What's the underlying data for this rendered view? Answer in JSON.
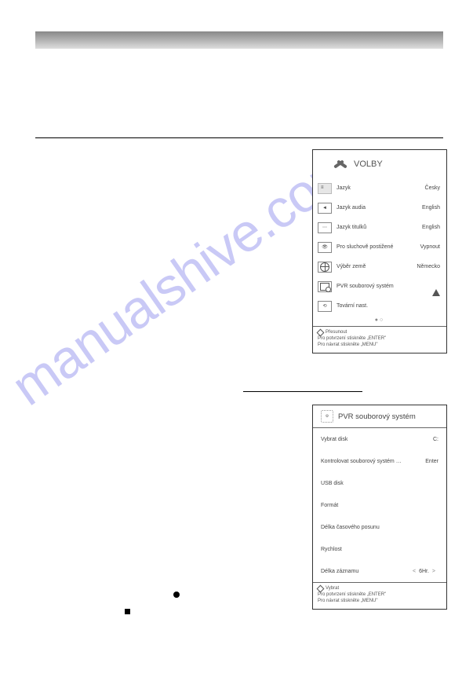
{
  "watermark": "manualshive.com",
  "panel1": {
    "title": "VOLBY",
    "rows": [
      {
        "label": "Jazyk",
        "value": "Česky",
        "selected": true
      },
      {
        "label": "Jazyk audia",
        "value": "English"
      },
      {
        "label": "Jazyk titulků",
        "value": "English"
      },
      {
        "label": "Pro sluchově postižené",
        "value": "Vypnout"
      },
      {
        "label": "Výběr země",
        "value": "Německo"
      },
      {
        "label": "PVR souborový systém",
        "value": ""
      },
      {
        "label": "Tovární nast.",
        "value": ""
      }
    ],
    "footer": {
      "nav": "Přesunout",
      "line1": "Pro potvrzení stiskněte „ENTER\"",
      "line2": "Pro návrat stiskněte „MENU\""
    }
  },
  "panel2": {
    "title": "PVR souborový systém",
    "rows": [
      {
        "label": "Vybrat disk",
        "value": "C:"
      },
      {
        "label": "Kontrolovat souborový systém …",
        "value": "Enter"
      },
      {
        "label": "USB disk",
        "value": ""
      },
      {
        "label": "Formát",
        "value": ""
      },
      {
        "label": "Délka časového posunu",
        "value": ""
      },
      {
        "label": "Rychlost",
        "value": ""
      },
      {
        "label": "Délka záznamu",
        "value": "6Hr.",
        "arrows": true
      }
    ],
    "footer": {
      "nav": "Vybrat",
      "line1": "Pro potvrzení stiskněte „ENTER\"",
      "line2": "Pro návrat stiskněte „MENU\""
    }
  },
  "colors": {
    "watermark": "rgba(100,100,230,0.35)",
    "border": "#333",
    "text": "#444"
  }
}
